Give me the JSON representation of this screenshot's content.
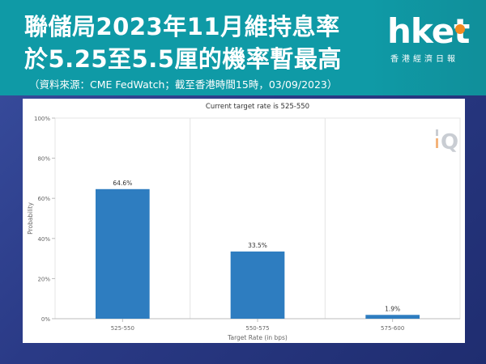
{
  "header": {
    "title_line1": "聯儲局2023年11月維持息率",
    "title_line2": "於5.25至5.5厘的機率暫最高",
    "source": "（資料來源：CME FedWatch；截至香港時間15時，03/09/2023）"
  },
  "logo": {
    "word": "hket",
    "sub": "香港經濟日報",
    "accent_color": "#f28a21"
  },
  "watermark_icon": "fedwatch-q-icon",
  "colors": {
    "header_bg": "#0f9aa6",
    "bar": "#2e7dc0",
    "page_bg": "#2a3a86"
  },
  "chart_data": {
    "type": "bar",
    "title": "Current target rate is 525-550",
    "xlabel": "Target Rate (in bps)",
    "ylabel": "Probability",
    "categories": [
      "525-550",
      "550-575",
      "575-600"
    ],
    "values": [
      64.6,
      33.5,
      1.9
    ],
    "value_labels": [
      "64.6%",
      "33.5%",
      "1.9%"
    ],
    "yticks": [
      0,
      20,
      40,
      60,
      80,
      100
    ],
    "ytick_labels": [
      "0%",
      "20%",
      "40%",
      "60%",
      "80%",
      "100%"
    ],
    "ylim": [
      0,
      100
    ],
    "grid": "vertical"
  }
}
